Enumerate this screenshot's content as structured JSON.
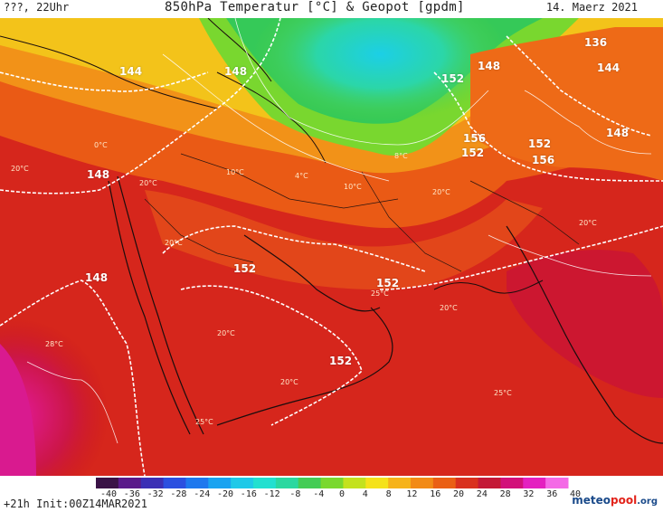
{
  "header": {
    "left": "???, 22Uhr",
    "title": "850hPa Temperatur [°C] & Geopot [gpdm]",
    "date": "14. Maerz 2021"
  },
  "footer": {
    "init": "+21h Init:00Z14MAR2021",
    "logo_main": "meteo",
    "logo_o": "pool",
    "logo_tld": ".org"
  },
  "colorbar": {
    "ticks": [
      "-40",
      "-36",
      "-32",
      "-28",
      "-24",
      "-20",
      "-16",
      "-12",
      "-8",
      "-4",
      "0",
      "4",
      "8",
      "12",
      "16",
      "20",
      "24",
      "28",
      "32",
      "36",
      "40"
    ],
    "colors": [
      "#3a1246",
      "#5a1a8a",
      "#3b2fb5",
      "#2b4fe0",
      "#1e78ee",
      "#1aa3f0",
      "#1fc9e8",
      "#22e0d0",
      "#2ad8a0",
      "#44cc55",
      "#7ad82e",
      "#c3e21e",
      "#f5e21a",
      "#f6b31a",
      "#f28a16",
      "#ea5f14",
      "#d9301e",
      "#c41836",
      "#d2107a",
      "#e420c0",
      "#f46ae6"
    ]
  },
  "geopotential_labels": [
    "144",
    "148",
    "148",
    "152",
    "152",
    "152",
    "152",
    "148",
    "136",
    "144",
    "148",
    "148",
    "152",
    "156",
    "152",
    "156"
  ],
  "temperature_labels": [
    "0°C",
    "20°C",
    "4°C",
    "10°C",
    "10°C",
    "20°C",
    "8°C",
    "20°C",
    "25°C",
    "20°C",
    "20°C",
    "28°C",
    "25°C",
    "20°C",
    "25°C",
    "20°C",
    "20°C"
  ],
  "colors": {
    "hot_red": "#d4241e",
    "orange": "#ee6a17",
    "yellow": "#f2d41a",
    "green": "#3ecb3a",
    "cyan": "#21d8d4",
    "magenta": "#d61c92",
    "dark_red": "#b8161a"
  }
}
